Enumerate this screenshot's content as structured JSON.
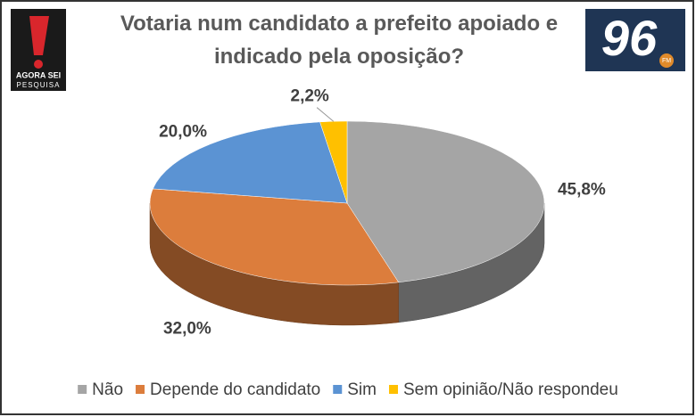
{
  "chart_data": {
    "type": "pie3d",
    "title": "Votaria num candidato a prefeito apoiado e indicado pela oposição?",
    "categories": [
      "Não",
      "Depende do candidato",
      "Sim",
      "Sem opinião/Não respondeu"
    ],
    "values": [
      45.8,
      32.0,
      20.0,
      2.2
    ],
    "value_labels": [
      "45,8%",
      "32,0%",
      "20,0%",
      "2,2%"
    ],
    "colors": [
      "#a5a5a5",
      "#dc7d3c",
      "#5b93d3",
      "#ffc000"
    ],
    "legend": "bottom"
  },
  "logos": {
    "left_top": "AGORA SEI",
    "left_bottom": "PESQUISA",
    "right": "96",
    "right_sub": "FM"
  }
}
